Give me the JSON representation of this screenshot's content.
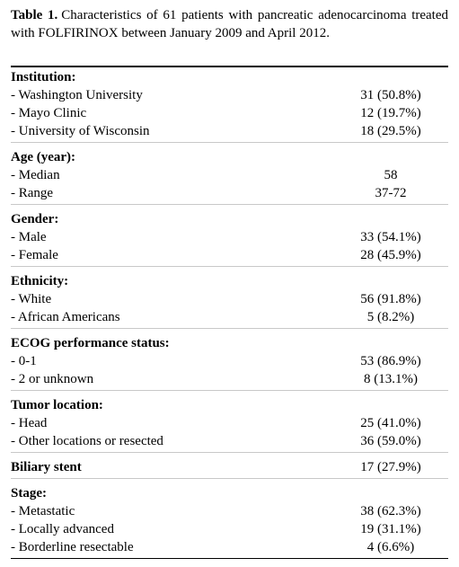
{
  "title": {
    "label": "Table 1.",
    "text": "Characteristics of 61 patients with pancreatic adenocarcinoma treated with FOLFIRINOX between January 2009 and April 2012."
  },
  "sections": [
    {
      "header": "Institution:",
      "rows": [
        {
          "label": "- Washington University",
          "value": "31 (50.8%)"
        },
        {
          "label": "- Mayo Clinic",
          "value": "12 (19.7%)"
        },
        {
          "label": "- University of Wisconsin",
          "value": "18 (29.5%)"
        }
      ]
    },
    {
      "header": "Age (year):",
      "rows": [
        {
          "label": "- Median",
          "value": "58"
        },
        {
          "label": "- Range",
          "value": "37-72"
        }
      ]
    },
    {
      "header": "Gender:",
      "rows": [
        {
          "label": "- Male",
          "value": "33 (54.1%)"
        },
        {
          "label": "- Female",
          "value": "28 (45.9%)"
        }
      ]
    },
    {
      "header": "Ethnicity:",
      "rows": [
        {
          "label": "- White",
          "value": "56 (91.8%)"
        },
        {
          "label": "- African Americans",
          "value": "5 (8.2%)"
        }
      ]
    },
    {
      "header": "ECOG performance status:",
      "rows": [
        {
          "label": "- 0-1",
          "value": "53 (86.9%)"
        },
        {
          "label": "- 2 or unknown",
          "value": "8 (13.1%)"
        }
      ]
    },
    {
      "header": "Tumor location:",
      "rows": [
        {
          "label": "- Head",
          "value": "25 (41.0%)"
        },
        {
          "label": "- Other locations or resected",
          "value": "36 (59.0%)"
        }
      ]
    },
    {
      "header": "Biliary stent",
      "value": "17 (27.9%)"
    },
    {
      "header": "Stage:",
      "rows": [
        {
          "label": "- Metastatic",
          "value": "38 (62.3%)"
        },
        {
          "label": "- Locally advanced",
          "value": "19 (31.1%)"
        },
        {
          "label": "- Borderline resectable",
          "value": "4 (6.6%)"
        }
      ]
    }
  ]
}
